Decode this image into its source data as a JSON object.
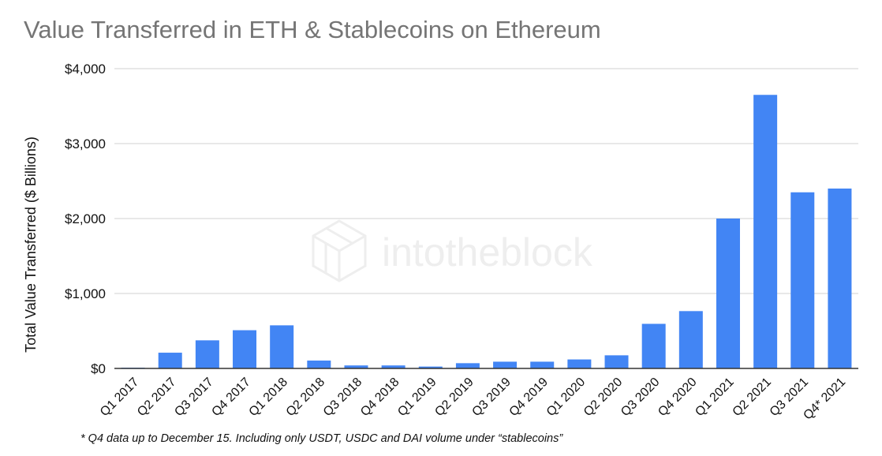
{
  "title": "Value Transferred in ETH & Stablecoins on Ethereum",
  "footnote": "* Q4 data up to December 15. Including only USDT, USDC and DAI volume under “stablecoins”",
  "watermark": "intotheblock",
  "colors": {
    "bar": "#4285f4",
    "grid": "#d0d0d0",
    "baseline": "#333333",
    "title": "#757575",
    "watermark": "#eeeeee"
  },
  "chart_data": {
    "type": "bar",
    "title": "Value Transferred in ETH & Stablecoins on Ethereum",
    "xlabel": "",
    "ylabel": "Total Value Transferred ($ Billions)",
    "ylim": [
      0,
      4000
    ],
    "yticks": [
      0,
      1000,
      2000,
      3000,
      4000
    ],
    "ytick_labels": [
      "$0",
      "$1,000",
      "$2,000",
      "$3,000",
      "$4,000"
    ],
    "grid": true,
    "legend": "none",
    "categories": [
      "Q1 2017",
      "Q2 2017",
      "Q3 2017",
      "Q4 2017",
      "Q1 2018",
      "Q2 2018",
      "Q3 2018",
      "Q4 2018",
      "Q1 2019",
      "Q2 2019",
      "Q3 2019",
      "Q4 2019",
      "Q1 2020",
      "Q2 2020",
      "Q3 2020",
      "Q4 2020",
      "Q1 2021",
      "Q2 2021",
      "Q3 2021",
      "Q4* 2021"
    ],
    "values": [
      10,
      210,
      375,
      510,
      575,
      105,
      40,
      40,
      25,
      70,
      90,
      90,
      120,
      175,
      595,
      765,
      2000,
      3650,
      2350,
      2400
    ]
  }
}
